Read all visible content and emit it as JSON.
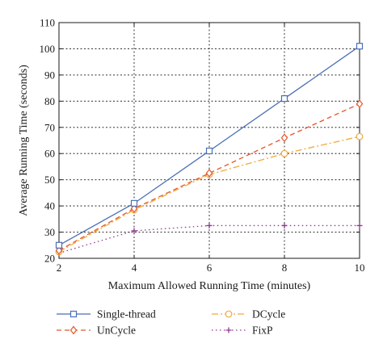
{
  "chart_data": {
    "type": "line",
    "xlabel": "Maximum Allowed Running Time (minutes)",
    "ylabel": "Average Running Time (seconds)",
    "xlim": [
      2,
      10
    ],
    "ylim": [
      20,
      110
    ],
    "x_ticks": [
      2,
      4,
      6,
      8,
      10
    ],
    "y_ticks": [
      20,
      30,
      40,
      50,
      60,
      70,
      80,
      90,
      100,
      110
    ],
    "grid": "dotted horizontal and vertical",
    "legend_position": "bottom, two columns",
    "series": [
      {
        "name": "Single-thread",
        "color": "#4a6fb5",
        "line_style": "solid",
        "marker": "square",
        "x": [
          2,
          4,
          6,
          8,
          10
        ],
        "y": [
          25,
          41,
          61,
          81,
          101
        ]
      },
      {
        "name": "UnCycle",
        "color": "#e3572b",
        "line_style": "dashed",
        "marker": "diamond",
        "x": [
          2,
          4,
          6,
          8,
          10
        ],
        "y": [
          23,
          39,
          52.5,
          66,
          79
        ]
      },
      {
        "name": "DCycle",
        "color": "#f2a93b",
        "line_style": "dash-dot",
        "marker": "circle",
        "x": [
          2,
          4,
          6,
          8,
          10
        ],
        "y": [
          22.5,
          38.5,
          52,
          60,
          66.5
        ]
      },
      {
        "name": "FixP",
        "color": "#8e3b8f",
        "line_style": "dotted",
        "marker": "plus",
        "x": [
          2,
          4,
          6,
          8,
          10
        ],
        "y": [
          22,
          30.5,
          32.5,
          32.5,
          32.5
        ]
      }
    ]
  }
}
